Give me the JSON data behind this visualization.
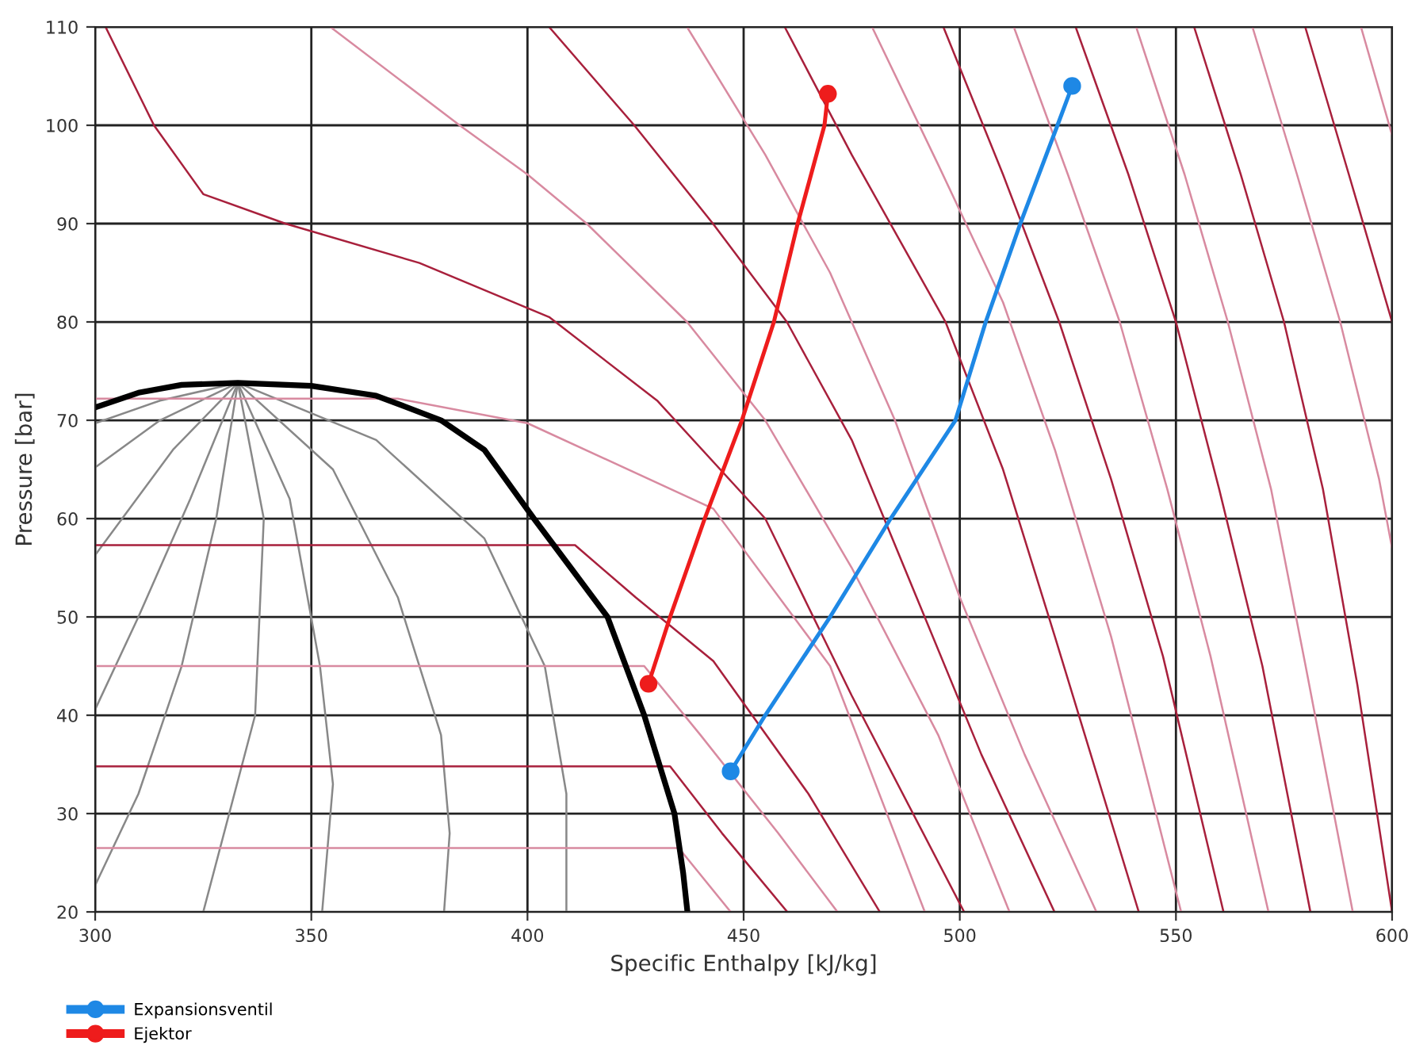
{
  "chart_data": {
    "type": "line",
    "xlabel": "Specific Enthalpy [kJ/kg]",
    "ylabel": "Pressure [bar]",
    "xlim": [
      300,
      600
    ],
    "ylim": [
      20,
      110
    ],
    "xticks": [
      300,
      350,
      400,
      450,
      500,
      550,
      600
    ],
    "yticks": [
      20,
      30,
      40,
      50,
      60,
      70,
      80,
      90,
      100,
      110
    ],
    "grid": true,
    "legend": "bottom left",
    "series": [
      {
        "color": "#888888",
        "x": [
          333,
          315,
          300
        ],
        "values": [
          73.8,
          72,
          69.7
        ]
      },
      {
        "color": "#888888",
        "x": [
          333,
          315,
          300
        ],
        "values": [
          73.8,
          70,
          65.2
        ]
      },
      {
        "color": "#888888",
        "x": [
          333,
          318,
          300
        ],
        "values": [
          73.8,
          67,
          56.3
        ]
      },
      {
        "color": "#888888",
        "x": [
          333,
          322,
          310,
          300
        ],
        "values": [
          73.8,
          62,
          50,
          40.6
        ]
      },
      {
        "color": "#888888",
        "x": [
          333,
          328,
          320,
          310,
          300
        ],
        "values": [
          73.8,
          60,
          45,
          32,
          22.7
        ]
      },
      {
        "color": "#888888",
        "x": [
          333,
          339,
          337,
          325
        ],
        "values": [
          73.8,
          60,
          40,
          20
        ]
      },
      {
        "color": "#888888",
        "x": [
          333,
          345,
          352,
          355,
          352.5
        ],
        "values": [
          73.8,
          62,
          45,
          33,
          20
        ]
      },
      {
        "color": "#888888",
        "x": [
          333,
          355,
          370,
          380,
          382,
          380.7
        ],
        "values": [
          73.8,
          65,
          52,
          38,
          28,
          20
        ]
      },
      {
        "color": "#888888",
        "x": [
          333,
          365,
          390,
          404,
          409,
          409
        ],
        "values": [
          73.8,
          68,
          58,
          45,
          32,
          20
        ]
      },
      {
        "color": "#d88aa0",
        "x": [
          300,
          435,
          447
        ],
        "values": [
          26.5,
          26.5,
          20
        ]
      },
      {
        "color": "#a8203c",
        "x": [
          300,
          433,
          445,
          460.1
        ],
        "values": [
          34.8,
          34.8,
          28,
          20
        ]
      },
      {
        "color": "#d88aa0",
        "x": [
          300,
          427,
          440,
          458,
          471.7
        ],
        "values": [
          45,
          45,
          38,
          28,
          20
        ]
      },
      {
        "color": "#a8203c",
        "x": [
          300,
          411,
          425,
          443,
          465,
          481.5
        ],
        "values": [
          57.3,
          57.3,
          52,
          45.5,
          32,
          20
        ]
      },
      {
        "color": "#d88aa0",
        "x": [
          300,
          370,
          400,
          443,
          470,
          491.9
        ],
        "values": [
          72.2,
          72.2,
          69.7,
          61,
          45,
          20
        ]
      },
      {
        "color": "#a8203c",
        "x": [
          302.4,
          313.6,
          325,
          344,
          375,
          405,
          430,
          455,
          475,
          501
        ],
        "values": [
          110,
          100,
          93,
          90,
          86,
          80.5,
          72,
          60,
          42,
          20
        ]
      },
      {
        "color": "#d88aa0",
        "x": [
          354.4,
          384.3,
          400,
          413.7,
          436.9,
          455,
          475,
          495,
          511.5
        ],
        "values": [
          110,
          100,
          95,
          90,
          80,
          70,
          55,
          38,
          20
        ]
      },
      {
        "color": "#a8203c",
        "x": [
          405,
          424.7,
          442.9,
          460,
          475,
          490,
          505,
          521.9
        ],
        "values": [
          110,
          100,
          90,
          80,
          68,
          52,
          36,
          20
        ]
      },
      {
        "color": "#d88aa0",
        "x": [
          436.9,
          455,
          470,
          485,
          500,
          515,
          531.6
        ],
        "values": [
          110,
          97,
          85,
          70,
          52,
          36,
          20
        ]
      },
      {
        "color": "#a8203c",
        "x": [
          459.5,
          475,
          496.7,
          510,
          522,
          541.4
        ],
        "values": [
          110,
          97,
          80,
          65,
          48,
          20
        ]
      },
      {
        "color": "#d88aa0",
        "x": [
          479.7,
          495,
          510,
          522,
          535,
          551.2
        ],
        "values": [
          110,
          96,
          82,
          67,
          48,
          20
        ]
      },
      {
        "color": "#a8203c",
        "x": [
          496.2,
          510,
          523,
          535,
          547,
          561
        ],
        "values": [
          110,
          95,
          80,
          64,
          46,
          20
        ]
      },
      {
        "color": "#d88aa0",
        "x": [
          512.5,
          525,
          537,
          548,
          558,
          571.4
        ],
        "values": [
          110,
          95,
          80,
          63,
          46,
          20
        ]
      },
      {
        "color": "#a8203c",
        "x": [
          526.8,
          539,
          550,
          560,
          570,
          581.1
        ],
        "values": [
          110,
          95,
          80,
          63,
          45,
          20
        ]
      },
      {
        "color": "#d88aa0",
        "x": [
          540.8,
          552,
          562,
          572,
          580,
          590.9
        ],
        "values": [
          110,
          95,
          80,
          63,
          45,
          20
        ]
      },
      {
        "color": "#a8203c",
        "x": [
          554.2,
          565,
          575,
          584,
          592,
          600
        ],
        "values": [
          110,
          95,
          80,
          63,
          43,
          20
        ]
      },
      {
        "color": "#d88aa0",
        "x": [
          567.7,
          578,
          588,
          597,
          600
        ],
        "values": [
          110,
          95,
          80,
          64,
          57
        ]
      },
      {
        "color": "#a8203c",
        "x": [
          579.9,
          590,
          600
        ],
        "values": [
          110,
          95,
          80
        ]
      },
      {
        "color": "#d88aa0",
        "x": [
          592.8,
          600
        ],
        "values": [
          110,
          99
        ]
      },
      {
        "color": "#000000",
        "x": [
          300,
          310,
          320,
          333,
          350,
          365,
          380,
          390,
          401.5,
          410,
          418.5,
          427,
          434,
          436,
          437
        ],
        "values": [
          71.3,
          72.8,
          73.6,
          73.8,
          73.5,
          72.5,
          70,
          67,
          60,
          55,
          50,
          40,
          30,
          24,
          20
        ]
      },
      {
        "name": "Expansionsventil",
        "color": "#1e88e5",
        "x": [
          447,
          455,
          470,
          484,
          499,
          506,
          514,
          522.6,
          526
        ],
        "values": [
          34.3,
          40,
          50,
          60,
          70,
          80,
          90,
          100,
          104
        ]
      },
      {
        "name": "Ejektor",
        "color": "#ee1c1c",
        "x": [
          428,
          433,
          441,
          449.6,
          457,
          462.5,
          468.7,
          469.5
        ],
        "values": [
          43.2,
          50,
          60,
          70,
          80,
          90,
          100,
          103.2
        ]
      },
      {
        "type": "scatter",
        "marker": "circle",
        "color": "#1e88e5",
        "x": [
          447,
          526
        ],
        "values": [
          34.3,
          104
        ]
      },
      {
        "type": "scatter",
        "marker": "circle",
        "color": "#ee1c1c",
        "x": [
          428,
          469.5
        ],
        "values": [
          43.2,
          103.2
        ]
      }
    ]
  }
}
